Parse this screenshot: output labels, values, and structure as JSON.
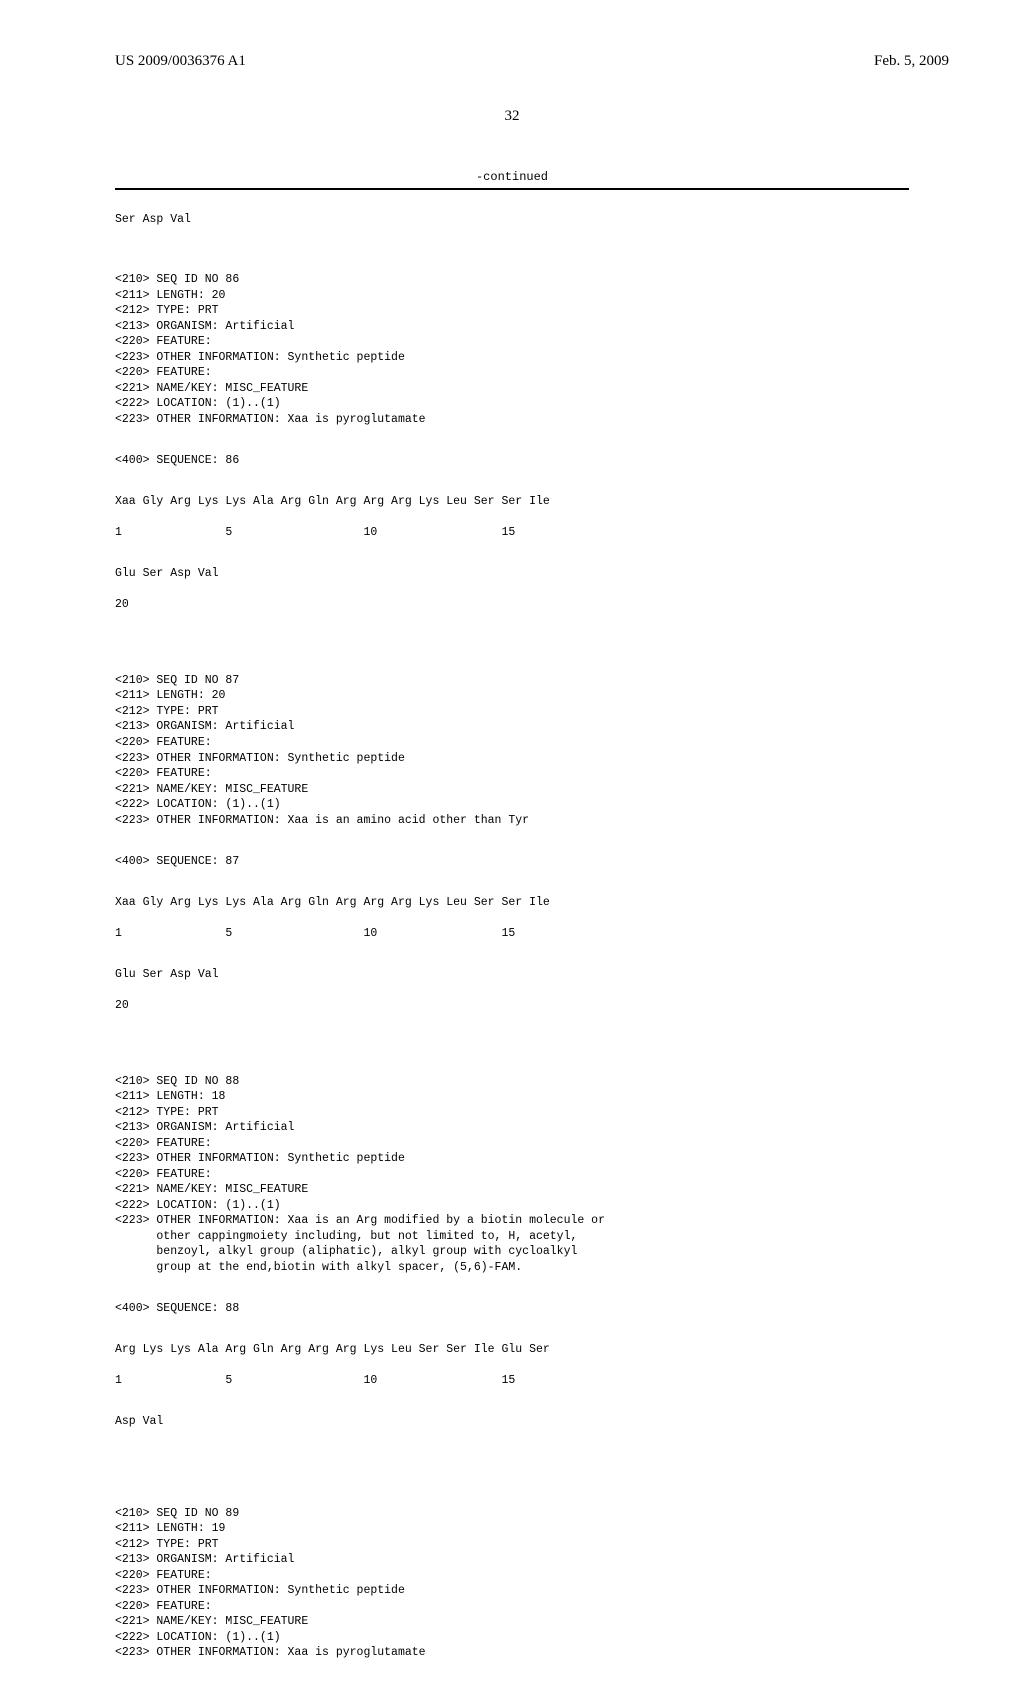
{
  "header": {
    "pub_number": "US 2009/0036376 A1",
    "pub_date": "Feb. 5, 2009"
  },
  "page_number": "32",
  "continued_label": "-continued",
  "prev_tail": "Ser Asp Val",
  "blocks": [
    {
      "meta": "<210> SEQ ID NO 86\n<211> LENGTH: 20\n<212> TYPE: PRT\n<213> ORGANISM: Artificial\n<220> FEATURE:\n<223> OTHER INFORMATION: Synthetic peptide\n<220> FEATURE:\n<221> NAME/KEY: MISC_FEATURE\n<222> LOCATION: (1)..(1)\n<223> OTHER INFORMATION: Xaa is pyroglutamate",
      "seq_label": "<400> SEQUENCE: 86",
      "seq_line1": "Xaa Gly Arg Lys Lys Ala Arg Gln Arg Arg Arg Lys Leu Ser Ser Ile",
      "seq_nums1": "1               5                   10                  15",
      "seq_line2": "Glu Ser Asp Val",
      "seq_nums2": "20"
    },
    {
      "meta": "<210> SEQ ID NO 87\n<211> LENGTH: 20\n<212> TYPE: PRT\n<213> ORGANISM: Artificial\n<220> FEATURE:\n<223> OTHER INFORMATION: Synthetic peptide\n<220> FEATURE:\n<221> NAME/KEY: MISC_FEATURE\n<222> LOCATION: (1)..(1)\n<223> OTHER INFORMATION: Xaa is an amino acid other than Tyr",
      "seq_label": "<400> SEQUENCE: 87",
      "seq_line1": "Xaa Gly Arg Lys Lys Ala Arg Gln Arg Arg Arg Lys Leu Ser Ser Ile",
      "seq_nums1": "1               5                   10                  15",
      "seq_line2": "Glu Ser Asp Val",
      "seq_nums2": "20"
    },
    {
      "meta": "<210> SEQ ID NO 88\n<211> LENGTH: 18\n<212> TYPE: PRT\n<213> ORGANISM: Artificial\n<220> FEATURE:\n<223> OTHER INFORMATION: Synthetic peptide\n<220> FEATURE:\n<221> NAME/KEY: MISC_FEATURE\n<222> LOCATION: (1)..(1)\n<223> OTHER INFORMATION: Xaa is an Arg modified by a biotin molecule or\n      other cappingmoiety including, but not limited to, H, acetyl,\n      benzoyl, alkyl group (aliphatic), alkyl group with cycloalkyl\n      group at the end,biotin with alkyl spacer, (5,6)-FAM.",
      "seq_label": "<400> SEQUENCE: 88",
      "seq_line1": "Arg Lys Lys Ala Arg Gln Arg Arg Arg Lys Leu Ser Ser Ile Glu Ser",
      "seq_nums1": "1               5                   10                  15",
      "seq_line2": "Asp Val",
      "seq_nums2": ""
    },
    {
      "meta": "<210> SEQ ID NO 89\n<211> LENGTH: 19\n<212> TYPE: PRT\n<213> ORGANISM: Artificial\n<220> FEATURE:\n<223> OTHER INFORMATION: Synthetic peptide\n<220> FEATURE:\n<221> NAME/KEY: MISC_FEATURE\n<222> LOCATION: (1)..(1)\n<223> OTHER INFORMATION: Xaa is pyroglutamate",
      "seq_label": "",
      "seq_line1": "",
      "seq_nums1": "",
      "seq_line2": "",
      "seq_nums2": ""
    }
  ]
}
